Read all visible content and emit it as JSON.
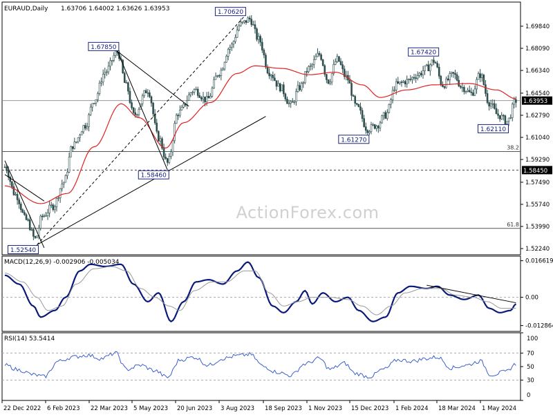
{
  "header": {
    "symbol_label": "EURAUD,Daily",
    "ohlc": [
      "1.63706",
      "1.64002",
      "1.63626",
      "1.63953"
    ]
  },
  "watermark": "ActionForex.com",
  "colors": {
    "candle": "#2f4f4f",
    "ma": "#e02020",
    "macd": "#0a1a7a",
    "signal": "#9a9a9a",
    "rsi": "#3a5fcd",
    "trendline": "#000000",
    "axis": "#000000",
    "label_border": "#1a237e",
    "current_price_bg": "#000000",
    "dashed_grid": "#aaaaaa"
  },
  "chart_data": [
    {
      "type": "candlestick",
      "name": "price",
      "x_ticks": [
        "22 Dec 2022",
        "6 Feb 2023",
        "22 Mar 2023",
        "5 May 2023",
        "20 Jun 2023",
        "3 Aug 2023",
        "18 Sep 2023",
        "1 Nov 2023",
        "15 Dec 2023",
        "1 Feb 2024",
        "18 Mar 2024",
        "1 May 2024"
      ],
      "y_ticks": [
        1.6984,
        1.6809,
        1.6634,
        1.6454,
        1.6279,
        1.6104,
        1.5929,
        1.5749,
        1.5574,
        1.5399,
        1.5224
      ],
      "y_tick_labels": [
        "1.69840",
        "1.68090",
        "1.66340",
        "1.64540",
        "1.62790",
        "1.61040",
        "1.59290",
        "1.57490",
        "1.55740",
        "1.53990",
        "1.52240"
      ],
      "ylim": [
        1.5175,
        1.7175
      ],
      "current_price": 1.63953,
      "current_price_label": "1.63953",
      "swing_labels": [
        {
          "text": "1.70620",
          "value": 1.7062,
          "pos": "above"
        },
        {
          "text": "1.67850",
          "value": 1.6785,
          "pos": "above"
        },
        {
          "text": "1.67420",
          "value": 1.6742,
          "pos": "above"
        },
        {
          "text": "1.61270",
          "value": 1.6127,
          "pos": "below"
        },
        {
          "text": "1.62110",
          "value": 1.6211,
          "pos": "below"
        },
        {
          "text": "1.58460",
          "value": 1.5846,
          "pos": "below"
        },
        {
          "text": "1.52540",
          "value": 1.5254,
          "pos": "below"
        }
      ],
      "fib_levels": [
        {
          "label": "38.2",
          "value": 1.5992
        },
        {
          "label": "61.8",
          "value": 1.5384
        }
      ],
      "support_level": {
        "value": 1.5845,
        "label": "1.58450"
      },
      "keypoints": [
        {
          "t": 0,
          "c": 1.587
        },
        {
          "t": 6,
          "c": 1.565
        },
        {
          "t": 12,
          "c": 1.545
        },
        {
          "t": 17,
          "c": 1.53
        },
        {
          "t": 21,
          "c": 1.548
        },
        {
          "t": 27,
          "c": 1.556
        },
        {
          "t": 33,
          "c": 1.575
        },
        {
          "t": 38,
          "c": 1.604
        },
        {
          "t": 45,
          "c": 1.62
        },
        {
          "t": 50,
          "c": 1.64
        },
        {
          "t": 56,
          "c": 1.662
        },
        {
          "t": 63,
          "c": 1.678
        },
        {
          "t": 68,
          "c": 1.651
        },
        {
          "t": 72,
          "c": 1.628
        },
        {
          "t": 80,
          "c": 1.648
        },
        {
          "t": 86,
          "c": 1.61
        },
        {
          "t": 91,
          "c": 1.59
        },
        {
          "t": 97,
          "c": 1.63
        },
        {
          "t": 106,
          "c": 1.648
        },
        {
          "t": 113,
          "c": 1.64
        },
        {
          "t": 120,
          "c": 1.662
        },
        {
          "t": 126,
          "c": 1.682
        },
        {
          "t": 132,
          "c": 1.7
        },
        {
          "t": 137,
          "c": 1.704
        },
        {
          "t": 142,
          "c": 1.688
        },
        {
          "t": 148,
          "c": 1.662
        },
        {
          "t": 154,
          "c": 1.65
        },
        {
          "t": 160,
          "c": 1.636
        },
        {
          "t": 165,
          "c": 1.65
        },
        {
          "t": 170,
          "c": 1.665
        },
        {
          "t": 176,
          "c": 1.676
        },
        {
          "t": 181,
          "c": 1.655
        },
        {
          "t": 186,
          "c": 1.672
        },
        {
          "t": 191,
          "c": 1.658
        },
        {
          "t": 197,
          "c": 1.634
        },
        {
          "t": 203,
          "c": 1.617
        },
        {
          "t": 208,
          "c": 1.62
        },
        {
          "t": 213,
          "c": 1.628
        },
        {
          "t": 219,
          "c": 1.652
        },
        {
          "t": 225,
          "c": 1.655
        },
        {
          "t": 231,
          "c": 1.66
        },
        {
          "t": 236,
          "c": 1.665
        },
        {
          "t": 240,
          "c": 1.671
        },
        {
          "t": 245,
          "c": 1.652
        },
        {
          "t": 251,
          "c": 1.66
        },
        {
          "t": 256,
          "c": 1.65
        },
        {
          "t": 261,
          "c": 1.645
        },
        {
          "t": 266,
          "c": 1.66
        },
        {
          "t": 271,
          "c": 1.638
        },
        {
          "t": 276,
          "c": 1.628
        },
        {
          "t": 281,
          "c": 1.623
        },
        {
          "t": 286,
          "c": 1.6395
        }
      ],
      "ma_keypoints": [
        {
          "t": 0,
          "v": 1.572
        },
        {
          "t": 20,
          "v": 1.558
        },
        {
          "t": 35,
          "v": 1.566
        },
        {
          "t": 50,
          "v": 1.603
        },
        {
          "t": 65,
          "v": 1.637
        },
        {
          "t": 75,
          "v": 1.626
        },
        {
          "t": 90,
          "v": 1.602
        },
        {
          "t": 100,
          "v": 1.622
        },
        {
          "t": 115,
          "v": 1.638
        },
        {
          "t": 130,
          "v": 1.661
        },
        {
          "t": 140,
          "v": 1.667
        },
        {
          "t": 155,
          "v": 1.665
        },
        {
          "t": 170,
          "v": 1.66
        },
        {
          "t": 185,
          "v": 1.662
        },
        {
          "t": 200,
          "v": 1.652
        },
        {
          "t": 210,
          "v": 1.642
        },
        {
          "t": 225,
          "v": 1.648
        },
        {
          "t": 240,
          "v": 1.652
        },
        {
          "t": 260,
          "v": 1.653
        },
        {
          "t": 275,
          "v": 1.648
        },
        {
          "t": 286,
          "v": 1.641
        }
      ],
      "lines": [
        {
          "kind": "solid",
          "from": {
            "t": 18,
            "v": 1.5254
          },
          "to": {
            "t": 146,
            "v": 1.627
          }
        },
        {
          "kind": "dashed",
          "from": {
            "t": 18,
            "v": 1.5254
          },
          "to": {
            "t": 134,
            "v": 1.7062
          }
        },
        {
          "kind": "solid",
          "from": {
            "t": 63,
            "v": 1.6785
          },
          "to": {
            "t": 103,
            "v": 1.635
          }
        },
        {
          "kind": "solid",
          "from": {
            "t": 63,
            "v": 1.6785
          },
          "to": {
            "t": 91,
            "v": 1.5846
          }
        },
        {
          "kind": "solid",
          "from": {
            "t": 0,
            "v": 1.592
          },
          "to": {
            "t": 22,
            "v": 1.523
          }
        },
        {
          "kind": "solid",
          "from": {
            "t": 0,
            "v": 1.581
          },
          "to": {
            "t": 22,
            "v": 1.56
          }
        }
      ]
    },
    {
      "type": "line",
      "name": "macd",
      "label": "MACD(12,26,9) -0.002906 -0.005034",
      "y_ticks": [
        0.016619,
        0.0,
        -0.012864
      ],
      "y_tick_labels": [
        "0.016619",
        "0.00",
        "-0.012864"
      ],
      "ylim": [
        -0.0155,
        0.0187
      ],
      "series": [
        {
          "name": "macd",
          "keypoints": [
            {
              "t": 0,
              "v": 0.01
            },
            {
              "t": 8,
              "v": 0.006
            },
            {
              "t": 16,
              "v": -0.004
            },
            {
              "t": 20,
              "v": -0.009
            },
            {
              "t": 28,
              "v": -0.006
            },
            {
              "t": 34,
              "v": 0.0
            },
            {
              "t": 42,
              "v": 0.012
            },
            {
              "t": 48,
              "v": 0.015
            },
            {
              "t": 56,
              "v": 0.014
            },
            {
              "t": 65,
              "v": 0.015
            },
            {
              "t": 72,
              "v": 0.006
            },
            {
              "t": 80,
              "v": -0.002
            },
            {
              "t": 86,
              "v": 0.002
            },
            {
              "t": 93,
              "v": -0.011
            },
            {
              "t": 100,
              "v": -0.002
            },
            {
              "t": 107,
              "v": 0.007
            },
            {
              "t": 114,
              "v": 0.008
            },
            {
              "t": 122,
              "v": 0.006
            },
            {
              "t": 130,
              "v": 0.012
            },
            {
              "t": 136,
              "v": 0.016
            },
            {
              "t": 142,
              "v": 0.009
            },
            {
              "t": 150,
              "v": -0.004
            },
            {
              "t": 156,
              "v": -0.007
            },
            {
              "t": 163,
              "v": -0.002
            },
            {
              "t": 168,
              "v": 0.003
            },
            {
              "t": 172,
              "v": -0.003
            },
            {
              "t": 178,
              "v": 0.002
            },
            {
              "t": 185,
              "v": -0.002
            },
            {
              "t": 192,
              "v": 0.0
            },
            {
              "t": 198,
              "v": -0.006
            },
            {
              "t": 206,
              "v": -0.011
            },
            {
              "t": 213,
              "v": -0.009
            },
            {
              "t": 220,
              "v": 0.002
            },
            {
              "t": 227,
              "v": 0.005
            },
            {
              "t": 236,
              "v": 0.004
            },
            {
              "t": 242,
              "v": 0.005
            },
            {
              "t": 249,
              "v": 0.001
            },
            {
              "t": 257,
              "v": -0.001
            },
            {
              "t": 265,
              "v": 0.001
            },
            {
              "t": 271,
              "v": -0.005
            },
            {
              "t": 277,
              "v": -0.007
            },
            {
              "t": 283,
              "v": -0.006
            },
            {
              "t": 286,
              "v": -0.003
            }
          ]
        },
        {
          "name": "signal",
          "keypoints": [
            {
              "t": 0,
              "v": 0.011
            },
            {
              "t": 10,
              "v": 0.007
            },
            {
              "t": 18,
              "v": 0.0
            },
            {
              "t": 24,
              "v": -0.006
            },
            {
              "t": 32,
              "v": -0.004
            },
            {
              "t": 40,
              "v": 0.006
            },
            {
              "t": 50,
              "v": 0.013
            },
            {
              "t": 60,
              "v": 0.014
            },
            {
              "t": 68,
              "v": 0.012
            },
            {
              "t": 76,
              "v": 0.004
            },
            {
              "t": 84,
              "v": 0.0
            },
            {
              "t": 92,
              "v": -0.004
            },
            {
              "t": 98,
              "v": -0.006
            },
            {
              "t": 106,
              "v": 0.003
            },
            {
              "t": 116,
              "v": 0.007
            },
            {
              "t": 124,
              "v": 0.007
            },
            {
              "t": 134,
              "v": 0.012
            },
            {
              "t": 140,
              "v": 0.012
            },
            {
              "t": 148,
              "v": 0.002
            },
            {
              "t": 156,
              "v": -0.004
            },
            {
              "t": 164,
              "v": -0.002
            },
            {
              "t": 172,
              "v": 0.0
            },
            {
              "t": 182,
              "v": 0.0
            },
            {
              "t": 192,
              "v": -0.001
            },
            {
              "t": 200,
              "v": -0.004
            },
            {
              "t": 208,
              "v": -0.008
            },
            {
              "t": 216,
              "v": -0.004
            },
            {
              "t": 224,
              "v": 0.002
            },
            {
              "t": 234,
              "v": 0.004
            },
            {
              "t": 244,
              "v": 0.004
            },
            {
              "t": 252,
              "v": 0.001
            },
            {
              "t": 262,
              "v": 0.0
            },
            {
              "t": 270,
              "v": -0.002
            },
            {
              "t": 278,
              "v": -0.005
            },
            {
              "t": 286,
              "v": -0.005
            }
          ]
        }
      ],
      "trendline": {
        "from": {
          "t": 236,
          "v": 0.0055
        },
        "to": {
          "t": 286,
          "v": -0.0025
        }
      }
    },
    {
      "type": "line",
      "name": "rsi",
      "label": "RSI(14) 53.5414",
      "y_ticks": [
        100,
        70,
        50,
        30,
        0
      ],
      "y_tick_labels": [
        "100",
        "70",
        "50",
        "30",
        "0"
      ],
      "ylim": [
        0,
        100
      ],
      "levels": [
        70,
        30
      ],
      "keypoints": [
        {
          "t": 0,
          "v": 52
        },
        {
          "t": 8,
          "v": 45
        },
        {
          "t": 16,
          "v": 38
        },
        {
          "t": 22,
          "v": 35
        },
        {
          "t": 30,
          "v": 58
        },
        {
          "t": 38,
          "v": 64
        },
        {
          "t": 46,
          "v": 67
        },
        {
          "t": 54,
          "v": 62
        },
        {
          "t": 62,
          "v": 70
        },
        {
          "t": 68,
          "v": 46
        },
        {
          "t": 76,
          "v": 52
        },
        {
          "t": 84,
          "v": 44
        },
        {
          "t": 91,
          "v": 34
        },
        {
          "t": 98,
          "v": 60
        },
        {
          "t": 106,
          "v": 64
        },
        {
          "t": 114,
          "v": 52
        },
        {
          "t": 122,
          "v": 62
        },
        {
          "t": 130,
          "v": 66
        },
        {
          "t": 137,
          "v": 68
        },
        {
          "t": 145,
          "v": 50
        },
        {
          "t": 152,
          "v": 42
        },
        {
          "t": 160,
          "v": 37
        },
        {
          "t": 168,
          "v": 54
        },
        {
          "t": 176,
          "v": 62
        },
        {
          "t": 182,
          "v": 46
        },
        {
          "t": 190,
          "v": 55
        },
        {
          "t": 196,
          "v": 40
        },
        {
          "t": 204,
          "v": 35
        },
        {
          "t": 212,
          "v": 46
        },
        {
          "t": 220,
          "v": 60
        },
        {
          "t": 228,
          "v": 58
        },
        {
          "t": 236,
          "v": 62
        },
        {
          "t": 242,
          "v": 64
        },
        {
          "t": 250,
          "v": 48
        },
        {
          "t": 258,
          "v": 52
        },
        {
          "t": 266,
          "v": 58
        },
        {
          "t": 272,
          "v": 38
        },
        {
          "t": 280,
          "v": 42
        },
        {
          "t": 286,
          "v": 53.5
        }
      ]
    }
  ]
}
